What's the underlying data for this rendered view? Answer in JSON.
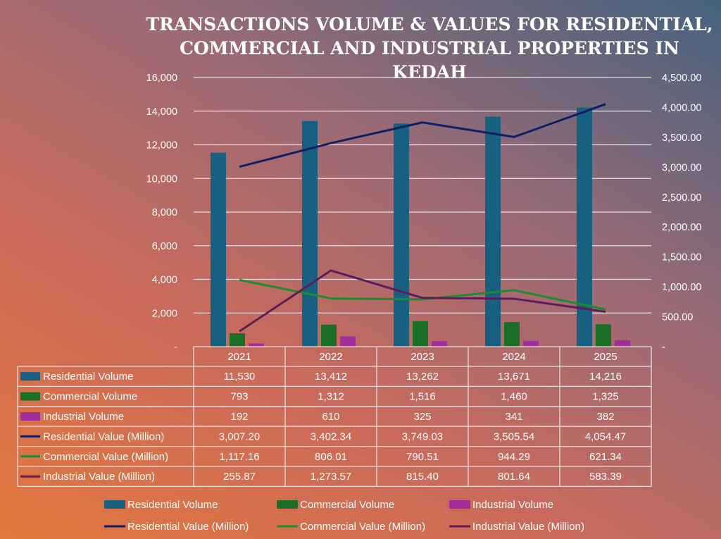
{
  "chart_data": {
    "type": "bar",
    "title": "TRANSACTIONS VOLUME & VALUES FOR RESIDENTIAL, COMMERCIAL AND INDUSTRIAL PROPERTIES IN KEDAH",
    "categories": [
      "2021",
      "2022",
      "2023",
      "2024",
      "2025"
    ],
    "y_left": {
      "lim": [
        0,
        16000
      ],
      "ticks": [
        "-",
        "2,000",
        "4,000",
        "6,000",
        "8,000",
        "10,000",
        "12,000",
        "14,000",
        "16,000"
      ]
    },
    "y_right": {
      "lim": [
        0,
        4500
      ],
      "ticks": [
        "-",
        "500.00",
        "1,000.00",
        "1,500.00",
        "2,000.00",
        "2,500.00",
        "3,000.00",
        "3,500.00",
        "4,000.00",
        "4,500.00"
      ]
    },
    "grid": true,
    "legend_position": "bottom",
    "series": [
      {
        "name": "Residential Volume",
        "kind": "bar",
        "axis": "left",
        "color": "#17607f",
        "values": [
          11530,
          13412,
          13262,
          13671,
          14216
        ],
        "labels": [
          "11,530",
          "13,412",
          "13,262",
          "13,671",
          "14,216"
        ]
      },
      {
        "name": "Commercial Volume",
        "kind": "bar",
        "axis": "left",
        "color": "#1b6e25",
        "values": [
          793,
          1312,
          1516,
          1460,
          1325
        ],
        "labels": [
          "793",
          "1,312",
          "1,516",
          "1,460",
          "1,325"
        ]
      },
      {
        "name": "Industrial Volume",
        "kind": "bar",
        "axis": "left",
        "color": "#a22e9c",
        "values": [
          192,
          610,
          325,
          341,
          382
        ],
        "labels": [
          "192",
          "610",
          "325",
          "341",
          "382"
        ]
      },
      {
        "name": "Residential Value (Million)",
        "kind": "line",
        "axis": "right",
        "color": "#0e1f64",
        "values": [
          3007.2,
          3402.34,
          3749.03,
          3505.54,
          4054.47
        ],
        "labels": [
          "3,007.20",
          "3,402.34",
          "3,749.03",
          "3,505.54",
          "4,054.47"
        ]
      },
      {
        "name": "Commercial Value (Million)",
        "kind": "line",
        "axis": "right",
        "color": "#208a2e",
        "values": [
          1117.16,
          806.01,
          790.51,
          944.29,
          621.34
        ],
        "labels": [
          "1,117.16",
          "806.01",
          "790.51",
          "944.29",
          "621.34"
        ]
      },
      {
        "name": "Industrial Value (Million)",
        "kind": "line",
        "axis": "right",
        "color": "#5c1d5a",
        "values": [
          255.87,
          1273.57,
          815.4,
          801.64,
          583.39
        ],
        "labels": [
          "255.87",
          "1,273.57",
          "815.40",
          "801.64",
          "583.39"
        ]
      }
    ]
  }
}
